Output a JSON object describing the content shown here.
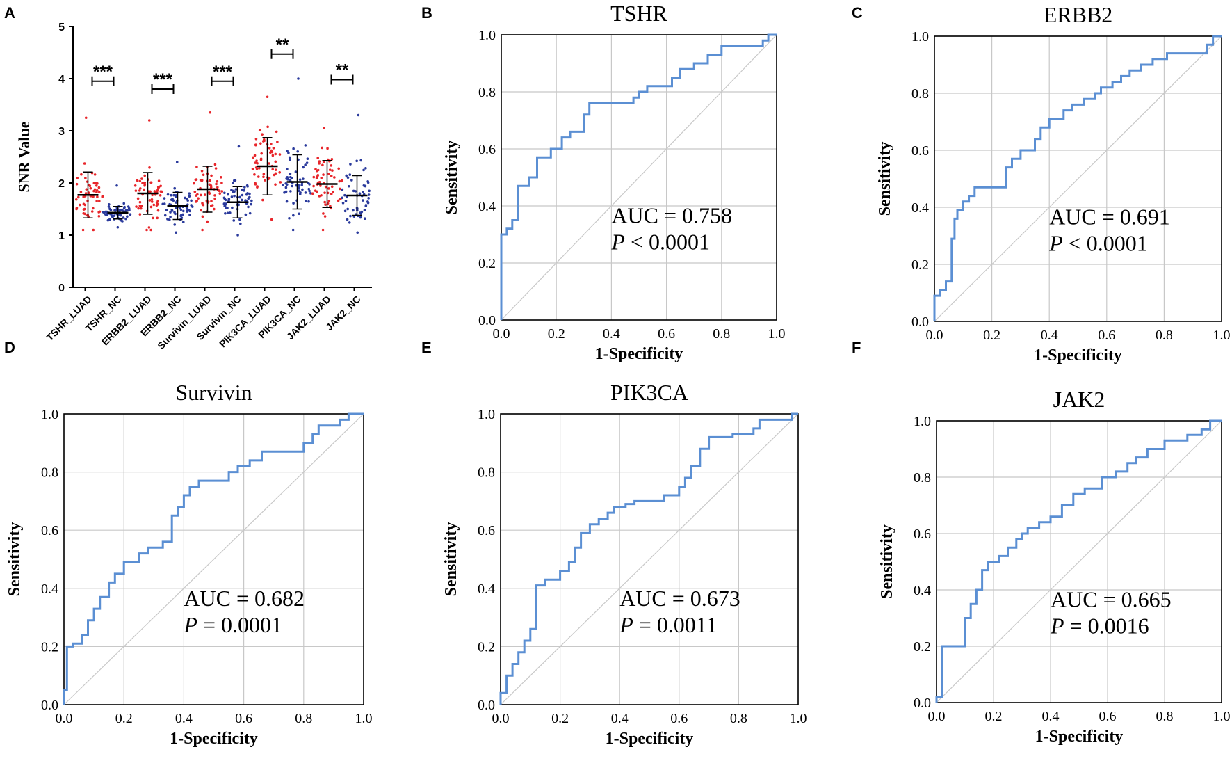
{
  "panel_letters": [
    "A",
    "B",
    "C",
    "D",
    "E",
    "F"
  ],
  "chart_data": [
    {
      "type": "scatter",
      "panel": "A",
      "title": "",
      "xlabel": "",
      "ylabel": "SNR Value",
      "ylim": [
        0,
        5
      ],
      "yticks": [
        0,
        1,
        2,
        3,
        4,
        5
      ],
      "categories": [
        "TSHR_LUAD",
        "TSHR_NC",
        "ERBB2_LUAD",
        "ERBB2_NC",
        "Survivin_LUAD",
        "Survivin_NC",
        "PIK3CA_LUAD",
        "PIK3CA_NC",
        "JAK2_LUAD",
        "JAK2_NC"
      ],
      "groups": [
        {
          "name": "TSHR_LUAD",
          "color": "#e8262b",
          "mean": 1.77,
          "sd": 0.44,
          "min": 1.1,
          "max": 3.25,
          "n": 60
        },
        {
          "name": "TSHR_NC",
          "color": "#2a3a9c",
          "mean": 1.43,
          "sd": 0.12,
          "min": 1.15,
          "max": 1.95,
          "n": 60
        },
        {
          "name": "ERBB2_LUAD",
          "color": "#e8262b",
          "mean": 1.8,
          "sd": 0.4,
          "min": 1.1,
          "max": 3.2,
          "n": 60
        },
        {
          "name": "ERBB2_NC",
          "color": "#2a3a9c",
          "mean": 1.56,
          "sd": 0.26,
          "min": 1.05,
          "max": 2.4,
          "n": 60
        },
        {
          "name": "Survivin_LUAD",
          "color": "#e8262b",
          "mean": 1.88,
          "sd": 0.44,
          "min": 1.1,
          "max": 3.35,
          "n": 60
        },
        {
          "name": "Survivin_NC",
          "color": "#2a3a9c",
          "mean": 1.63,
          "sd": 0.3,
          "min": 1.0,
          "max": 2.7,
          "n": 60
        },
        {
          "name": "PIK3CA_LUAD",
          "color": "#e8262b",
          "mean": 2.32,
          "sd": 0.55,
          "min": 1.3,
          "max": 3.65,
          "n": 60
        },
        {
          "name": "PIK3CA_NC",
          "color": "#2a3a9c",
          "mean": 2.02,
          "sd": 0.52,
          "min": 1.1,
          "max": 4.0,
          "n": 60
        },
        {
          "name": "JAK2_LUAD",
          "color": "#e8262b",
          "mean": 1.98,
          "sd": 0.45,
          "min": 1.1,
          "max": 3.05,
          "n": 60
        },
        {
          "name": "JAK2_NC",
          "color": "#2a3a9c",
          "mean": 1.76,
          "sd": 0.38,
          "min": 1.05,
          "max": 3.3,
          "n": 60
        }
      ],
      "significance": [
        {
          "pair": [
            0,
            1
          ],
          "label": "***",
          "y": 3.95
        },
        {
          "pair": [
            2,
            3
          ],
          "label": "***",
          "y": 3.8
        },
        {
          "pair": [
            4,
            5
          ],
          "label": "***",
          "y": 3.95
        },
        {
          "pair": [
            6,
            7
          ],
          "label": "**",
          "y": 4.47
        },
        {
          "pair": [
            8,
            9
          ],
          "label": "**",
          "y": 3.98
        }
      ]
    },
    {
      "type": "line",
      "panel": "B",
      "title": "TSHR",
      "xlabel": "1-Specificity",
      "ylabel": "Sensitivity",
      "xlim": [
        0,
        1
      ],
      "ylim": [
        0,
        1
      ],
      "ticks": [
        "0.0",
        "0.2",
        "0.4",
        "0.6",
        "0.8",
        "1.0"
      ],
      "auc_text": "AUC = 0.758",
      "p_prefix": "P",
      "p_text": " < 0.0001",
      "series": [
        {
          "name": "ROC",
          "color": "#5b8fd3",
          "x": [
            0,
            0,
            0.02,
            0.02,
            0.04,
            0.04,
            0.06,
            0.06,
            0.1,
            0.1,
            0.13,
            0.13,
            0.18,
            0.18,
            0.22,
            0.22,
            0.25,
            0.25,
            0.3,
            0.3,
            0.32,
            0.32,
            0.48,
            0.48,
            0.5,
            0.5,
            0.53,
            0.53,
            0.62,
            0.62,
            0.65,
            0.65,
            0.7,
            0.7,
            0.75,
            0.75,
            0.8,
            0.8,
            0.95,
            0.95,
            0.97,
            0.97,
            1.0
          ],
          "y": [
            0,
            0.3,
            0.3,
            0.32,
            0.32,
            0.35,
            0.35,
            0.47,
            0.47,
            0.5,
            0.5,
            0.57,
            0.57,
            0.6,
            0.6,
            0.64,
            0.64,
            0.66,
            0.66,
            0.72,
            0.72,
            0.76,
            0.76,
            0.78,
            0.78,
            0.8,
            0.8,
            0.82,
            0.82,
            0.85,
            0.85,
            0.88,
            0.88,
            0.9,
            0.9,
            0.93,
            0.93,
            0.96,
            0.96,
            0.98,
            0.98,
            1.0,
            1.0
          ]
        }
      ]
    },
    {
      "type": "line",
      "panel": "C",
      "title": "ERBB2",
      "xlabel": "1-Specificity",
      "ylabel": "Sensitivity",
      "xlim": [
        0,
        1
      ],
      "ylim": [
        0,
        1
      ],
      "ticks": [
        "0.0",
        "0.2",
        "0.4",
        "0.6",
        "0.8",
        "1.0"
      ],
      "auc_text": "AUC = 0.691",
      "p_prefix": "P",
      "p_text": " < 0.0001",
      "series": [
        {
          "name": "ROC",
          "color": "#5b8fd3",
          "x": [
            0,
            0,
            0.02,
            0.02,
            0.04,
            0.04,
            0.06,
            0.06,
            0.07,
            0.07,
            0.08,
            0.08,
            0.1,
            0.1,
            0.12,
            0.12,
            0.14,
            0.14,
            0.25,
            0.25,
            0.27,
            0.27,
            0.3,
            0.3,
            0.35,
            0.35,
            0.37,
            0.37,
            0.4,
            0.4,
            0.45,
            0.45,
            0.48,
            0.48,
            0.52,
            0.52,
            0.56,
            0.56,
            0.58,
            0.58,
            0.62,
            0.62,
            0.65,
            0.65,
            0.68,
            0.68,
            0.72,
            0.72,
            0.76,
            0.76,
            0.81,
            0.81,
            0.95,
            0.95,
            0.97,
            0.97,
            1.0
          ],
          "y": [
            0,
            0.09,
            0.09,
            0.11,
            0.11,
            0.14,
            0.14,
            0.29,
            0.29,
            0.36,
            0.36,
            0.39,
            0.39,
            0.42,
            0.42,
            0.44,
            0.44,
            0.47,
            0.47,
            0.54,
            0.54,
            0.57,
            0.57,
            0.6,
            0.6,
            0.64,
            0.64,
            0.68,
            0.68,
            0.71,
            0.71,
            0.74,
            0.74,
            0.76,
            0.76,
            0.78,
            0.78,
            0.8,
            0.8,
            0.82,
            0.82,
            0.84,
            0.84,
            0.86,
            0.86,
            0.88,
            0.88,
            0.9,
            0.9,
            0.92,
            0.92,
            0.94,
            0.94,
            0.97,
            0.97,
            1.0,
            1.0
          ]
        }
      ]
    },
    {
      "type": "line",
      "panel": "D",
      "title": "Survivin",
      "xlabel": "1-Specificity",
      "ylabel": "Sensitivity",
      "xlim": [
        0,
        1
      ],
      "ylim": [
        0,
        1
      ],
      "ticks": [
        "0.0",
        "0.2",
        "0.4",
        "0.6",
        "0.8",
        "1.0"
      ],
      "auc_text": "AUC = 0.682",
      "p_prefix": "P",
      "p_text": " = 0.0001",
      "series": [
        {
          "name": "ROC",
          "color": "#5b8fd3",
          "x": [
            0,
            0,
            0.01,
            0.01,
            0.03,
            0.03,
            0.06,
            0.06,
            0.08,
            0.08,
            0.1,
            0.1,
            0.12,
            0.12,
            0.15,
            0.15,
            0.17,
            0.17,
            0.2,
            0.2,
            0.25,
            0.25,
            0.28,
            0.28,
            0.33,
            0.33,
            0.36,
            0.36,
            0.38,
            0.38,
            0.4,
            0.4,
            0.42,
            0.42,
            0.45,
            0.45,
            0.55,
            0.55,
            0.58,
            0.58,
            0.62,
            0.62,
            0.66,
            0.66,
            0.8,
            0.8,
            0.83,
            0.83,
            0.85,
            0.85,
            0.92,
            0.92,
            0.95,
            0.95,
            1.0
          ],
          "y": [
            0,
            0.05,
            0.05,
            0.2,
            0.2,
            0.21,
            0.21,
            0.24,
            0.24,
            0.29,
            0.29,
            0.33,
            0.33,
            0.37,
            0.37,
            0.42,
            0.42,
            0.45,
            0.45,
            0.49,
            0.49,
            0.52,
            0.52,
            0.54,
            0.54,
            0.56,
            0.56,
            0.65,
            0.65,
            0.68,
            0.68,
            0.72,
            0.72,
            0.75,
            0.75,
            0.77,
            0.77,
            0.8,
            0.8,
            0.82,
            0.82,
            0.84,
            0.84,
            0.87,
            0.87,
            0.9,
            0.9,
            0.93,
            0.93,
            0.96,
            0.96,
            0.98,
            0.98,
            1.0,
            1.0
          ]
        }
      ]
    },
    {
      "type": "line",
      "panel": "E",
      "title": "PIK3CA",
      "xlabel": "1-Specificity",
      "ylabel": "Sensitivity",
      "xlim": [
        0,
        1
      ],
      "ylim": [
        0,
        1
      ],
      "ticks": [
        "0.0",
        "0.2",
        "0.4",
        "0.6",
        "0.8",
        "1.0"
      ],
      "auc_text": "AUC = 0.673",
      "p_prefix": "P",
      "p_text": " = 0.0011",
      "series": [
        {
          "name": "ROC",
          "color": "#5b8fd3",
          "x": [
            0,
            0,
            0.02,
            0.02,
            0.04,
            0.04,
            0.06,
            0.06,
            0.08,
            0.08,
            0.1,
            0.1,
            0.12,
            0.12,
            0.15,
            0.15,
            0.2,
            0.2,
            0.23,
            0.23,
            0.25,
            0.25,
            0.27,
            0.27,
            0.3,
            0.3,
            0.33,
            0.33,
            0.36,
            0.36,
            0.38,
            0.38,
            0.42,
            0.42,
            0.45,
            0.45,
            0.55,
            0.55,
            0.6,
            0.6,
            0.62,
            0.62,
            0.64,
            0.64,
            0.67,
            0.67,
            0.7,
            0.7,
            0.78,
            0.78,
            0.85,
            0.85,
            0.87,
            0.87,
            0.98,
            0.98,
            1.0
          ],
          "y": [
            0,
            0.04,
            0.04,
            0.1,
            0.1,
            0.14,
            0.14,
            0.18,
            0.18,
            0.22,
            0.22,
            0.26,
            0.26,
            0.41,
            0.41,
            0.43,
            0.43,
            0.46,
            0.46,
            0.49,
            0.49,
            0.54,
            0.54,
            0.59,
            0.59,
            0.62,
            0.62,
            0.64,
            0.64,
            0.66,
            0.66,
            0.68,
            0.68,
            0.69,
            0.69,
            0.7,
            0.7,
            0.72,
            0.72,
            0.75,
            0.75,
            0.78,
            0.78,
            0.82,
            0.82,
            0.88,
            0.88,
            0.92,
            0.92,
            0.93,
            0.93,
            0.95,
            0.95,
            0.98,
            0.98,
            1.0,
            1.0
          ]
        }
      ]
    },
    {
      "type": "line",
      "panel": "F",
      "title": "JAK2",
      "xlabel": "1-Specificity",
      "ylabel": "Sensitivity",
      "xlim": [
        0,
        1
      ],
      "ylim": [
        0,
        1
      ],
      "ticks": [
        "0.0",
        "0.2",
        "0.4",
        "0.6",
        "0.8",
        "1.0"
      ],
      "auc_text": "AUC = 0.665",
      "p_prefix": "P",
      "p_text": " = 0.0016",
      "series": [
        {
          "name": "ROC",
          "color": "#5b8fd3",
          "x": [
            0,
            0,
            0.02,
            0.02,
            0.1,
            0.1,
            0.12,
            0.12,
            0.14,
            0.14,
            0.16,
            0.16,
            0.18,
            0.18,
            0.22,
            0.22,
            0.25,
            0.25,
            0.28,
            0.28,
            0.3,
            0.3,
            0.32,
            0.32,
            0.36,
            0.36,
            0.4,
            0.4,
            0.44,
            0.44,
            0.48,
            0.48,
            0.52,
            0.52,
            0.58,
            0.58,
            0.63,
            0.63,
            0.67,
            0.67,
            0.7,
            0.7,
            0.74,
            0.74,
            0.8,
            0.8,
            0.88,
            0.88,
            0.93,
            0.93,
            0.96,
            0.96,
            1.0
          ],
          "y": [
            0,
            0.02,
            0.02,
            0.2,
            0.2,
            0.3,
            0.3,
            0.35,
            0.35,
            0.4,
            0.4,
            0.47,
            0.47,
            0.5,
            0.5,
            0.52,
            0.52,
            0.55,
            0.55,
            0.58,
            0.58,
            0.6,
            0.6,
            0.62,
            0.62,
            0.64,
            0.64,
            0.66,
            0.66,
            0.7,
            0.7,
            0.74,
            0.74,
            0.76,
            0.76,
            0.8,
            0.8,
            0.82,
            0.82,
            0.85,
            0.85,
            0.87,
            0.87,
            0.9,
            0.9,
            0.93,
            0.93,
            0.95,
            0.95,
            0.97,
            0.97,
            1.0,
            1.0
          ]
        }
      ]
    }
  ]
}
